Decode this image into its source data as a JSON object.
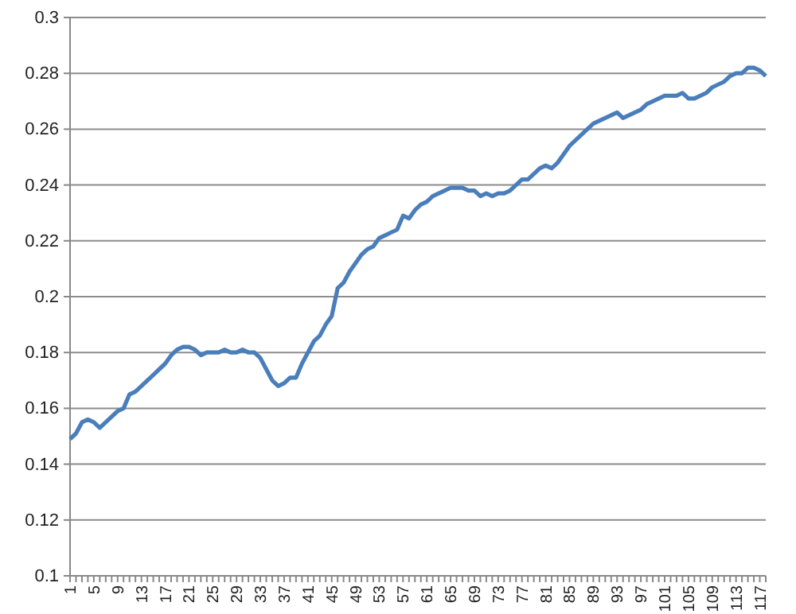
{
  "chart_data": {
    "type": "line",
    "categories": [
      "1",
      null,
      null,
      null,
      "5",
      null,
      null,
      null,
      "9",
      null,
      null,
      null,
      "13",
      null,
      null,
      null,
      "17",
      null,
      null,
      null,
      "21",
      null,
      null,
      null,
      "25",
      null,
      null,
      null,
      "29",
      null,
      null,
      null,
      "33",
      null,
      null,
      null,
      "37",
      null,
      null,
      null,
      "41",
      null,
      null,
      null,
      "45",
      null,
      null,
      null,
      "49",
      null,
      null,
      null,
      "53",
      null,
      null,
      null,
      "57",
      null,
      null,
      null,
      "61",
      null,
      null,
      null,
      "65",
      null,
      null,
      null,
      "69",
      null,
      null,
      null,
      "73",
      null,
      null,
      null,
      "77",
      null,
      null,
      null,
      "81",
      null,
      null,
      null,
      "85",
      null,
      null,
      null,
      "89",
      null,
      null,
      null,
      "93",
      null,
      null,
      null,
      "97",
      null,
      null,
      null,
      "101",
      null,
      null,
      null,
      "105",
      null,
      null,
      null,
      "109",
      null,
      null,
      null,
      "113",
      null,
      null,
      null,
      "117",
      null
    ],
    "series": [
      {
        "color": "#4a7ebb",
        "values": [
          0.149,
          0.151,
          0.155,
          0.156,
          0.155,
          0.153,
          0.155,
          0.157,
          0.159,
          0.16,
          0.165,
          0.166,
          0.168,
          0.17,
          0.172,
          0.174,
          0.176,
          0.179,
          0.181,
          0.182,
          0.182,
          0.181,
          0.179,
          0.18,
          0.18,
          0.18,
          0.181,
          0.18,
          0.18,
          0.181,
          0.18,
          0.18,
          0.178,
          0.174,
          0.17,
          0.168,
          0.169,
          0.171,
          0.171,
          0.176,
          0.18,
          0.184,
          0.186,
          0.19,
          0.193,
          0.203,
          0.205,
          0.209,
          0.212,
          0.215,
          0.217,
          0.218,
          0.221,
          0.222,
          0.223,
          0.224,
          0.229,
          0.228,
          0.231,
          0.233,
          0.234,
          0.236,
          0.237,
          0.238,
          0.239,
          0.239,
          0.239,
          0.238,
          0.238,
          0.236,
          0.237,
          0.236,
          0.237,
          0.237,
          0.238,
          0.24,
          0.242,
          0.242,
          0.244,
          0.246,
          0.247,
          0.246,
          0.248,
          0.251,
          0.254,
          0.256,
          0.258,
          0.26,
          0.262,
          0.263,
          0.264,
          0.265,
          0.266,
          0.264,
          0.265,
          0.266,
          0.267,
          0.269,
          0.27,
          0.271,
          0.272,
          0.272,
          0.272,
          0.273,
          0.271,
          0.271,
          0.272,
          0.273,
          0.275,
          0.276,
          0.277,
          0.279,
          0.28,
          0.28,
          0.282,
          0.282,
          0.281,
          0.279
        ]
      }
    ],
    "ylim": [
      0.1,
      0.3
    ],
    "yticks": [
      0.1,
      0.12,
      0.14,
      0.16,
      0.18,
      0.2,
      0.22,
      0.24,
      0.26,
      0.28,
      0.3
    ],
    "grid": "y",
    "marker": "none",
    "line_style": "solid"
  }
}
